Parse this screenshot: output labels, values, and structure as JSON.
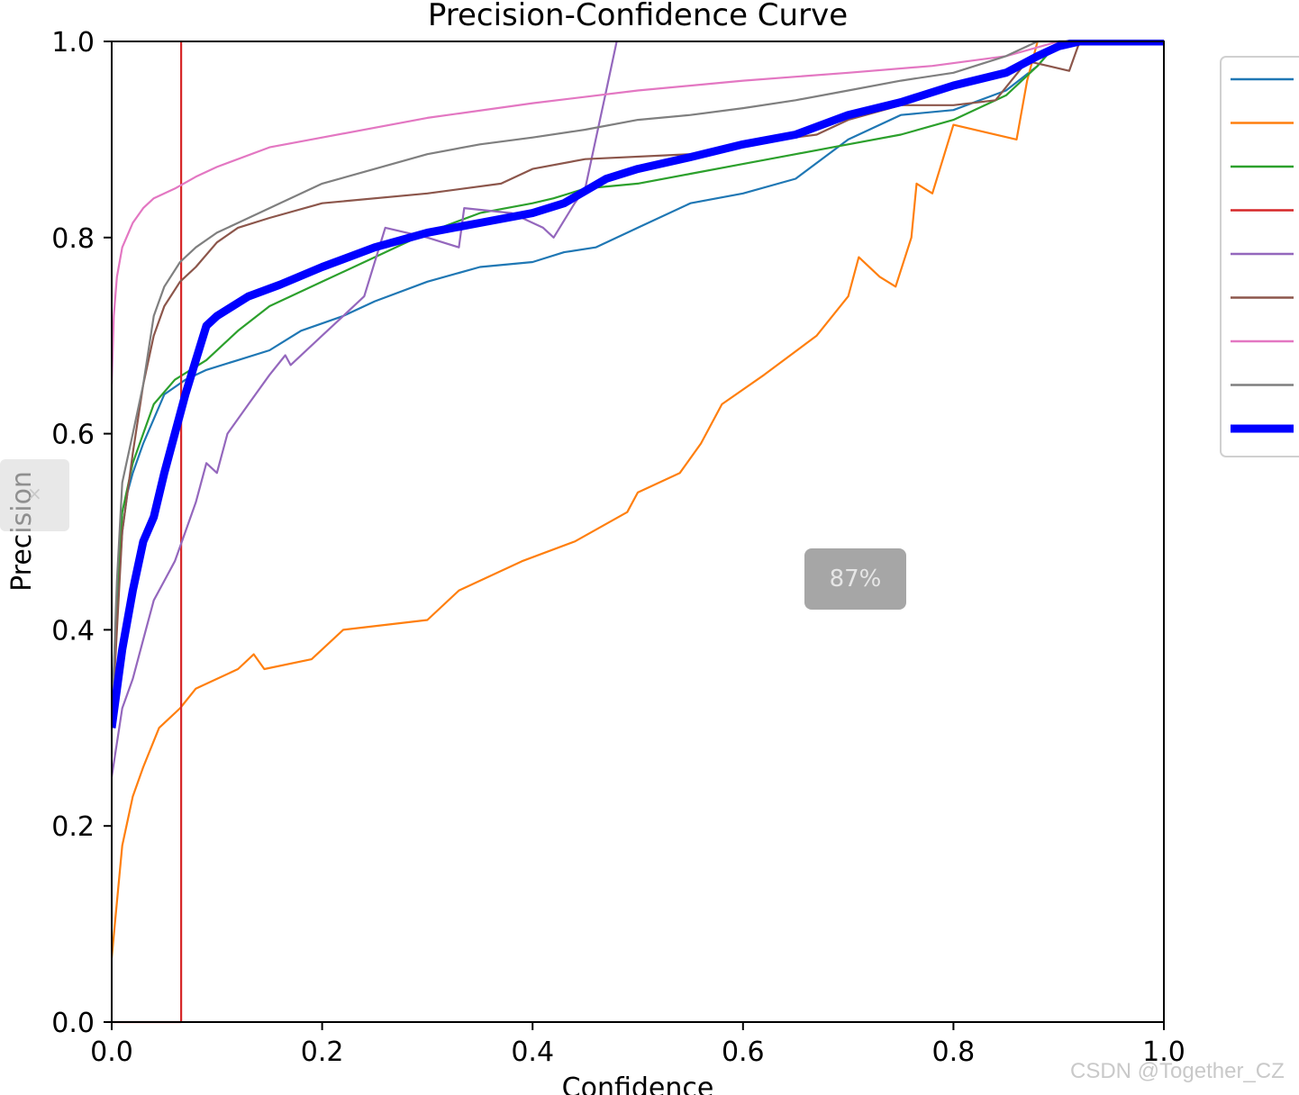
{
  "chart_data": {
    "type": "line",
    "title": "Precision-Confidence Curve",
    "xlabel": "Confidence",
    "ylabel": "Precision",
    "xlim": [
      0,
      1
    ],
    "ylim": [
      0,
      1
    ],
    "xticks": [
      "0.0",
      "0.2",
      "0.4",
      "0.6",
      "0.8",
      "1.0"
    ],
    "yticks": [
      "0.0",
      "0.2",
      "0.4",
      "0.6",
      "0.8",
      "1.0"
    ],
    "grid": false,
    "legend_position": "right (outside plot, labels cut off)",
    "series": [
      {
        "color": "#1f77b4",
        "width": 2.2,
        "points": [
          [
            0,
            0.3
          ],
          [
            0.005,
            0.42
          ],
          [
            0.01,
            0.5
          ],
          [
            0.015,
            0.54
          ],
          [
            0.02,
            0.56
          ],
          [
            0.03,
            0.59
          ],
          [
            0.04,
            0.615
          ],
          [
            0.05,
            0.64
          ],
          [
            0.07,
            0.655
          ],
          [
            0.09,
            0.665
          ],
          [
            0.12,
            0.675
          ],
          [
            0.15,
            0.685
          ],
          [
            0.18,
            0.705
          ],
          [
            0.22,
            0.72
          ],
          [
            0.25,
            0.735
          ],
          [
            0.3,
            0.755
          ],
          [
            0.35,
            0.77
          ],
          [
            0.4,
            0.775
          ],
          [
            0.43,
            0.785
          ],
          [
            0.46,
            0.79
          ],
          [
            0.5,
            0.81
          ],
          [
            0.55,
            0.835
          ],
          [
            0.6,
            0.845
          ],
          [
            0.65,
            0.86
          ],
          [
            0.7,
            0.9
          ],
          [
            0.75,
            0.925
          ],
          [
            0.8,
            0.93
          ],
          [
            0.85,
            0.95
          ],
          [
            0.88,
            0.975
          ],
          [
            0.9,
            1.0
          ],
          [
            1.0,
            1.0
          ]
        ]
      },
      {
        "color": "#ff7f0e",
        "width": 2.2,
        "points": [
          [
            0,
            0.065
          ],
          [
            0.003,
            0.1
          ],
          [
            0.01,
            0.18
          ],
          [
            0.02,
            0.23
          ],
          [
            0.03,
            0.26
          ],
          [
            0.045,
            0.3
          ],
          [
            0.055,
            0.31
          ],
          [
            0.065,
            0.32
          ],
          [
            0.08,
            0.34
          ],
          [
            0.1,
            0.35
          ],
          [
            0.12,
            0.36
          ],
          [
            0.135,
            0.375
          ],
          [
            0.145,
            0.36
          ],
          [
            0.19,
            0.37
          ],
          [
            0.21,
            0.39
          ],
          [
            0.22,
            0.4
          ],
          [
            0.3,
            0.41
          ],
          [
            0.33,
            0.44
          ],
          [
            0.39,
            0.47
          ],
          [
            0.44,
            0.49
          ],
          [
            0.49,
            0.52
          ],
          [
            0.5,
            0.54
          ],
          [
            0.54,
            0.56
          ],
          [
            0.56,
            0.59
          ],
          [
            0.58,
            0.63
          ],
          [
            0.62,
            0.66
          ],
          [
            0.67,
            0.7
          ],
          [
            0.7,
            0.74
          ],
          [
            0.71,
            0.78
          ],
          [
            0.73,
            0.76
          ],
          [
            0.745,
            0.75
          ],
          [
            0.76,
            0.8
          ],
          [
            0.765,
            0.855
          ],
          [
            0.78,
            0.845
          ],
          [
            0.8,
            0.915
          ],
          [
            0.86,
            0.9
          ],
          [
            0.87,
            0.96
          ],
          [
            0.88,
            1.0
          ]
        ]
      },
      {
        "color": "#2ca02c",
        "width": 2.2,
        "points": [
          [
            0,
            0.3
          ],
          [
            0.005,
            0.44
          ],
          [
            0.01,
            0.52
          ],
          [
            0.02,
            0.57
          ],
          [
            0.03,
            0.6
          ],
          [
            0.04,
            0.63
          ],
          [
            0.06,
            0.655
          ],
          [
            0.09,
            0.675
          ],
          [
            0.12,
            0.705
          ],
          [
            0.15,
            0.73
          ],
          [
            0.2,
            0.755
          ],
          [
            0.25,
            0.78
          ],
          [
            0.3,
            0.805
          ],
          [
            0.35,
            0.825
          ],
          [
            0.4,
            0.835
          ],
          [
            0.42,
            0.84
          ],
          [
            0.45,
            0.85
          ],
          [
            0.5,
            0.855
          ],
          [
            0.55,
            0.865
          ],
          [
            0.6,
            0.875
          ],
          [
            0.65,
            0.885
          ],
          [
            0.7,
            0.895
          ],
          [
            0.75,
            0.905
          ],
          [
            0.8,
            0.92
          ],
          [
            0.85,
            0.945
          ],
          [
            0.88,
            0.975
          ],
          [
            0.9,
            1.0
          ],
          [
            1.0,
            1.0
          ]
        ]
      },
      {
        "color": "#d62728",
        "width": 2.2,
        "points": [
          [
            0,
            0.0
          ],
          [
            0.066,
            0.0
          ],
          [
            0.066,
            1.0
          ]
        ]
      },
      {
        "color": "#9467bd",
        "width": 2.2,
        "points": [
          [
            0,
            0.25
          ],
          [
            0.01,
            0.32
          ],
          [
            0.02,
            0.35
          ],
          [
            0.03,
            0.39
          ],
          [
            0.04,
            0.43
          ],
          [
            0.05,
            0.45
          ],
          [
            0.06,
            0.47
          ],
          [
            0.07,
            0.5
          ],
          [
            0.08,
            0.53
          ],
          [
            0.09,
            0.57
          ],
          [
            0.1,
            0.56
          ],
          [
            0.11,
            0.6
          ],
          [
            0.13,
            0.63
          ],
          [
            0.15,
            0.66
          ],
          [
            0.165,
            0.68
          ],
          [
            0.17,
            0.67
          ],
          [
            0.2,
            0.7
          ],
          [
            0.22,
            0.72
          ],
          [
            0.24,
            0.74
          ],
          [
            0.26,
            0.81
          ],
          [
            0.3,
            0.8
          ],
          [
            0.33,
            0.79
          ],
          [
            0.335,
            0.83
          ],
          [
            0.38,
            0.825
          ],
          [
            0.41,
            0.81
          ],
          [
            0.42,
            0.8
          ],
          [
            0.44,
            0.835
          ],
          [
            0.45,
            0.85
          ],
          [
            0.46,
            0.9
          ],
          [
            0.47,
            0.95
          ],
          [
            0.48,
            1.0
          ]
        ]
      },
      {
        "color": "#8c564b",
        "width": 2.2,
        "points": [
          [
            0,
            0.3
          ],
          [
            0.005,
            0.4
          ],
          [
            0.01,
            0.5
          ],
          [
            0.02,
            0.58
          ],
          [
            0.03,
            0.65
          ],
          [
            0.04,
            0.7
          ],
          [
            0.05,
            0.73
          ],
          [
            0.065,
            0.755
          ],
          [
            0.08,
            0.77
          ],
          [
            0.1,
            0.795
          ],
          [
            0.12,
            0.81
          ],
          [
            0.15,
            0.82
          ],
          [
            0.2,
            0.835
          ],
          [
            0.3,
            0.845
          ],
          [
            0.37,
            0.855
          ],
          [
            0.4,
            0.87
          ],
          [
            0.45,
            0.88
          ],
          [
            0.55,
            0.885
          ],
          [
            0.6,
            0.895
          ],
          [
            0.67,
            0.905
          ],
          [
            0.7,
            0.92
          ],
          [
            0.75,
            0.935
          ],
          [
            0.8,
            0.935
          ],
          [
            0.84,
            0.94
          ],
          [
            0.87,
            0.98
          ],
          [
            0.89,
            0.975
          ],
          [
            0.91,
            0.97
          ],
          [
            0.92,
            1.0
          ]
        ]
      },
      {
        "color": "#e377c2",
        "width": 2.2,
        "points": [
          [
            0,
            0.65
          ],
          [
            0.002,
            0.72
          ],
          [
            0.005,
            0.76
          ],
          [
            0.01,
            0.79
          ],
          [
            0.02,
            0.815
          ],
          [
            0.03,
            0.83
          ],
          [
            0.04,
            0.84
          ],
          [
            0.06,
            0.85
          ],
          [
            0.08,
            0.862
          ],
          [
            0.1,
            0.872
          ],
          [
            0.15,
            0.892
          ],
          [
            0.2,
            0.902
          ],
          [
            0.3,
            0.922
          ],
          [
            0.4,
            0.937
          ],
          [
            0.5,
            0.95
          ],
          [
            0.6,
            0.96
          ],
          [
            0.7,
            0.968
          ],
          [
            0.78,
            0.975
          ],
          [
            0.85,
            0.985
          ],
          [
            0.9,
            1.0
          ],
          [
            1.0,
            1.0
          ]
        ]
      },
      {
        "color": "#7f7f7f",
        "width": 2.2,
        "points": [
          [
            0,
            0.3
          ],
          [
            0.005,
            0.45
          ],
          [
            0.01,
            0.55
          ],
          [
            0.02,
            0.6
          ],
          [
            0.03,
            0.65
          ],
          [
            0.04,
            0.72
          ],
          [
            0.05,
            0.75
          ],
          [
            0.065,
            0.775
          ],
          [
            0.08,
            0.79
          ],
          [
            0.1,
            0.805
          ],
          [
            0.12,
            0.815
          ],
          [
            0.15,
            0.83
          ],
          [
            0.2,
            0.855
          ],
          [
            0.25,
            0.87
          ],
          [
            0.3,
            0.885
          ],
          [
            0.35,
            0.895
          ],
          [
            0.4,
            0.902
          ],
          [
            0.45,
            0.91
          ],
          [
            0.5,
            0.92
          ],
          [
            0.55,
            0.925
          ],
          [
            0.6,
            0.932
          ],
          [
            0.65,
            0.94
          ],
          [
            0.7,
            0.95
          ],
          [
            0.75,
            0.96
          ],
          [
            0.8,
            0.968
          ],
          [
            0.85,
            0.985
          ],
          [
            0.88,
            1.0
          ],
          [
            1.0,
            1.0
          ]
        ]
      },
      {
        "color": "#0000ff",
        "width": 9,
        "points": [
          [
            0,
            0.3
          ],
          [
            0.01,
            0.38
          ],
          [
            0.02,
            0.44
          ],
          [
            0.03,
            0.49
          ],
          [
            0.04,
            0.515
          ],
          [
            0.05,
            0.56
          ],
          [
            0.06,
            0.6
          ],
          [
            0.07,
            0.64
          ],
          [
            0.08,
            0.675
          ],
          [
            0.09,
            0.71
          ],
          [
            0.1,
            0.72
          ],
          [
            0.13,
            0.74
          ],
          [
            0.16,
            0.752
          ],
          [
            0.2,
            0.77
          ],
          [
            0.25,
            0.79
          ],
          [
            0.3,
            0.805
          ],
          [
            0.35,
            0.815
          ],
          [
            0.4,
            0.825
          ],
          [
            0.43,
            0.835
          ],
          [
            0.47,
            0.86
          ],
          [
            0.5,
            0.87
          ],
          [
            0.55,
            0.882
          ],
          [
            0.6,
            0.895
          ],
          [
            0.65,
            0.905
          ],
          [
            0.7,
            0.925
          ],
          [
            0.75,
            0.938
          ],
          [
            0.8,
            0.955
          ],
          [
            0.85,
            0.968
          ],
          [
            0.88,
            0.985
          ],
          [
            0.9,
            0.995
          ],
          [
            0.92,
            1.0
          ],
          [
            1.0,
            1.0
          ]
        ]
      }
    ]
  },
  "overlays": {
    "zoom_badge": "87%",
    "watermark": "CSDN @Together_CZ"
  }
}
